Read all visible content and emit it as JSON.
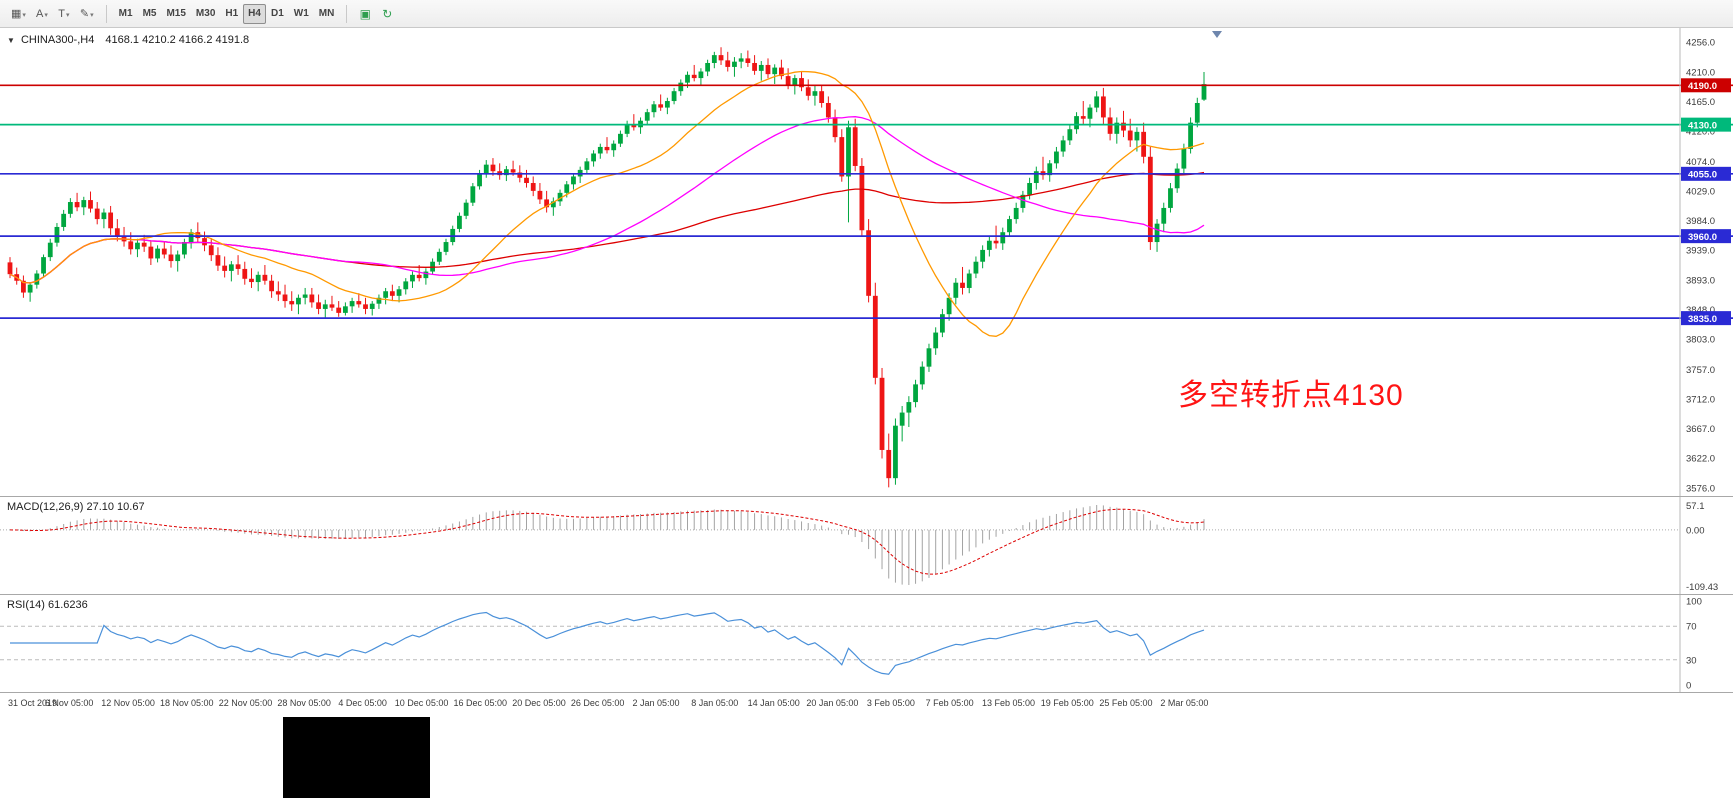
{
  "colors": {
    "up": "#00a63f",
    "down": "#ee1515",
    "ma_fast": "#ff9900",
    "ma_mid": "#ff00ff",
    "ma_slow": "#dd0000",
    "macd_hist": "#a3a3a3",
    "macd_signal": "#dd0000",
    "rsi_line": "#4a90d9",
    "annotation": "#ff1414",
    "axis_text": "#3a3a3a"
  },
  "toolbar": {
    "tools": [
      {
        "name": "chart-grid-tool",
        "glyph": "▦"
      },
      {
        "name": "text-tool",
        "glyph": "A"
      },
      {
        "name": "arrow-tool",
        "glyph": "T"
      },
      {
        "name": "draw-tool",
        "glyph": "✎"
      }
    ],
    "timeframes": [
      "M1",
      "M5",
      "M15",
      "M30",
      "H1",
      "H4",
      "D1",
      "W1",
      "MN"
    ],
    "active_timeframe": "H4",
    "right_icons": [
      {
        "name": "tile-windows-icon",
        "glyph": "▣"
      },
      {
        "name": "refresh-icon",
        "glyph": "↻"
      }
    ]
  },
  "main": {
    "symbol_title": "CHINA300-,H4",
    "ohlc_readout": "4168.1 4210.2 4166.2 4191.8",
    "annotation": "多空转折点4130"
  },
  "macd_panel": {
    "label": "MACD(12,26,9) 27.10 10.67",
    "ticks": [
      "57.1",
      "0.00",
      "-109.43"
    ]
  },
  "rsi_panel": {
    "label": "RSI(14) 61.6236",
    "ticks": [
      "100",
      "70",
      "30",
      "0"
    ]
  },
  "chart_data": {
    "type": "candlestick",
    "symbol": "CHINA300",
    "timeframe": "H4",
    "title": "CHINA300-,H4",
    "y_range": [
      3576.0,
      4256.0
    ],
    "y_ticks": [
      4256.0,
      4210.0,
      4165.0,
      4120.0,
      4074.0,
      4029.0,
      3984.0,
      3939.0,
      3893.0,
      3848.0,
      3803.0,
      3757.0,
      3712.0,
      3667.0,
      3622.0,
      3576.0
    ],
    "hlines": [
      {
        "value": 4190.0,
        "label": "4190.0",
        "color": "#cc0000"
      },
      {
        "value": 4130.0,
        "label": "4130.0",
        "color": "#00b97b"
      },
      {
        "value": 4055.0,
        "label": "4055.0",
        "color": "#2a2ad4"
      },
      {
        "value": 3960.0,
        "label": "3960.0",
        "color": "#2a2ad4"
      },
      {
        "value": 3835.0,
        "label": "3835.0",
        "color": "#2a2ad4"
      }
    ],
    "x_labels": [
      "31 Oct 2019",
      "6 Nov 05:00",
      "12 Nov 05:00",
      "18 Nov 05:00",
      "22 Nov 05:00",
      "28 Nov 05:00",
      "4 Dec 05:00",
      "10 Dec 05:00",
      "16 Dec 05:00",
      "20 Dec 05:00",
      "26 Dec 05:00",
      "2 Jan 05:00",
      "8 Jan 05:00",
      "14 Jan 05:00",
      "20 Jan 05:00",
      "3 Feb 05:00",
      "7 Feb 05:00",
      "13 Feb 05:00",
      "19 Feb 05:00",
      "25 Feb 05:00",
      "2 Mar 05:00"
    ],
    "ma_periods": {
      "fast": 20,
      "mid": 50,
      "slow": 100
    },
    "macd": {
      "fast": 12,
      "slow": 26,
      "signal": 9,
      "current_macd": 27.1,
      "current_signal": 10.67,
      "axis_max": 57.1,
      "axis_min": -109.43
    },
    "rsi": {
      "period": 14,
      "current": 61.6236,
      "levels": [
        70,
        30
      ],
      "axis": [
        100,
        0
      ]
    },
    "candles": [
      [
        3920,
        3928,
        3896,
        3902
      ],
      [
        3902,
        3912,
        3886,
        3892
      ],
      [
        3892,
        3900,
        3866,
        3874
      ],
      [
        3874,
        3890,
        3860,
        3886
      ],
      [
        3886,
        3908,
        3880,
        3903
      ],
      [
        3903,
        3932,
        3898,
        3928
      ],
      [
        3928,
        3956,
        3922,
        3950
      ],
      [
        3950,
        3980,
        3944,
        3974
      ],
      [
        3974,
        4000,
        3968,
        3994
      ],
      [
        3994,
        4018,
        3988,
        4012
      ],
      [
        4012,
        4026,
        3998,
        4004
      ],
      [
        4004,
        4020,
        3992,
        4015
      ],
      [
        4015,
        4028,
        3996,
        4002
      ],
      [
        4002,
        4012,
        3978,
        3986
      ],
      [
        3986,
        4002,
        3972,
        3996
      ],
      [
        3996,
        4006,
        3962,
        3972
      ],
      [
        3972,
        3986,
        3952,
        3960
      ],
      [
        3960,
        3974,
        3944,
        3952
      ],
      [
        3952,
        3966,
        3932,
        3940
      ],
      [
        3940,
        3956,
        3928,
        3950
      ],
      [
        3950,
        3962,
        3936,
        3944
      ],
      [
        3944,
        3952,
        3916,
        3926
      ],
      [
        3926,
        3946,
        3920,
        3941
      ],
      [
        3941,
        3951,
        3926,
        3932
      ],
      [
        3932,
        3946,
        3912,
        3922
      ],
      [
        3922,
        3938,
        3906,
        3932
      ],
      [
        3932,
        3956,
        3926,
        3951
      ],
      [
        3951,
        3971,
        3941,
        3966
      ],
      [
        3966,
        3981,
        3951,
        3957
      ],
      [
        3957,
        3967,
        3937,
        3946
      ],
      [
        3946,
        3957,
        3922,
        3931
      ],
      [
        3931,
        3943,
        3907,
        3915
      ],
      [
        3915,
        3929,
        3897,
        3907
      ],
      [
        3907,
        3922,
        3891,
        3917
      ],
      [
        3917,
        3931,
        3901,
        3910
      ],
      [
        3910,
        3921,
        3886,
        3895
      ],
      [
        3895,
        3911,
        3881,
        3890
      ],
      [
        3890,
        3906,
        3876,
        3901
      ],
      [
        3901,
        3916,
        3886,
        3892
      ],
      [
        3892,
        3901,
        3866,
        3876
      ],
      [
        3876,
        3891,
        3861,
        3871
      ],
      [
        3871,
        3886,
        3851,
        3861
      ],
      [
        3861,
        3876,
        3846,
        3856
      ],
      [
        3856,
        3871,
        3841,
        3866
      ],
      [
        3866,
        3881,
        3856,
        3871
      ],
      [
        3871,
        3881,
        3851,
        3859
      ],
      [
        3859,
        3871,
        3841,
        3849
      ],
      [
        3849,
        3863,
        3836,
        3856
      ],
      [
        3856,
        3869,
        3846,
        3851
      ],
      [
        3851,
        3861,
        3837,
        3843
      ],
      [
        3843,
        3859,
        3839,
        3853
      ],
      [
        3853,
        3866,
        3843,
        3861
      ],
      [
        3861,
        3873,
        3851,
        3856
      ],
      [
        3856,
        3866,
        3841,
        3849
      ],
      [
        3849,
        3861,
        3839,
        3857
      ],
      [
        3857,
        3871,
        3849,
        3866
      ],
      [
        3866,
        3881,
        3856,
        3876
      ],
      [
        3876,
        3886,
        3861,
        3869
      ],
      [
        3869,
        3884,
        3859,
        3879
      ],
      [
        3879,
        3896,
        3871,
        3891
      ],
      [
        3891,
        3906,
        3881,
        3901
      ],
      [
        3901,
        3916,
        3891,
        3896
      ],
      [
        3896,
        3911,
        3886,
        3906
      ],
      [
        3906,
        3926,
        3901,
        3921
      ],
      [
        3921,
        3941,
        3916,
        3936
      ],
      [
        3936,
        3956,
        3931,
        3951
      ],
      [
        3951,
        3976,
        3946,
        3971
      ],
      [
        3971,
        3996,
        3966,
        3991
      ],
      [
        3991,
        4016,
        3986,
        4011
      ],
      [
        4011,
        4041,
        4006,
        4036
      ],
      [
        4036,
        4061,
        4031,
        4056
      ],
      [
        4056,
        4076,
        4049,
        4069
      ],
      [
        4069,
        4079,
        4052,
        4059
      ],
      [
        4059,
        4071,
        4046,
        4053
      ],
      [
        4053,
        4067,
        4044,
        4062
      ],
      [
        4062,
        4075,
        4052,
        4057
      ],
      [
        4057,
        4068,
        4042,
        4049
      ],
      [
        4049,
        4061,
        4034,
        4041
      ],
      [
        4041,
        4051,
        4021,
        4029
      ],
      [
        4029,
        4041,
        4009,
        4016
      ],
      [
        4016,
        4029,
        3996,
        4004
      ],
      [
        4004,
        4019,
        3991,
        4013
      ],
      [
        4013,
        4031,
        4006,
        4026
      ],
      [
        4026,
        4044,
        4019,
        4039
      ],
      [
        4039,
        4056,
        4031,
        4051
      ],
      [
        4051,
        4066,
        4041,
        4061
      ],
      [
        4061,
        4079,
        4054,
        4074
      ],
      [
        4074,
        4091,
        4066,
        4086
      ],
      [
        4086,
        4101,
        4078,
        4096
      ],
      [
        4096,
        4111,
        4086,
        4091
      ],
      [
        4091,
        4106,
        4081,
        4101
      ],
      [
        4101,
        4121,
        4096,
        4116
      ],
      [
        4116,
        4136,
        4111,
        4131
      ],
      [
        4131,
        4146,
        4121,
        4126
      ],
      [
        4126,
        4141,
        4116,
        4136
      ],
      [
        4136,
        4154,
        4129,
        4149
      ],
      [
        4149,
        4166,
        4141,
        4161
      ],
      [
        4161,
        4176,
        4151,
        4156
      ],
      [
        4156,
        4171,
        4146,
        4166
      ],
      [
        4166,
        4186,
        4161,
        4181
      ],
      [
        4181,
        4199,
        4174,
        4194
      ],
      [
        4194,
        4211,
        4186,
        4206
      ],
      [
        4206,
        4221,
        4196,
        4201
      ],
      [
        4201,
        4216,
        4191,
        4211
      ],
      [
        4211,
        4229,
        4204,
        4224
      ],
      [
        4224,
        4241,
        4216,
        4236
      ],
      [
        4236,
        4248,
        4221,
        4228
      ],
      [
        4228,
        4241,
        4211,
        4218
      ],
      [
        4218,
        4233,
        4203,
        4226
      ],
      [
        4226,
        4239,
        4216,
        4231
      ],
      [
        4231,
        4243,
        4218,
        4224
      ],
      [
        4224,
        4236,
        4206,
        4212
      ],
      [
        4212,
        4227,
        4197,
        4221
      ],
      [
        4221,
        4231,
        4201,
        4207
      ],
      [
        4207,
        4222,
        4192,
        4217
      ],
      [
        4217,
        4229,
        4199,
        4204
      ],
      [
        4204,
        4216,
        4184,
        4191
      ],
      [
        4191,
        4206,
        4176,
        4201
      ],
      [
        4201,
        4211,
        4181,
        4187
      ],
      [
        4187,
        4199,
        4167,
        4174
      ],
      [
        4174,
        4189,
        4159,
        4181
      ],
      [
        4181,
        4191,
        4156,
        4163
      ],
      [
        4163,
        4173,
        4133,
        4141
      ],
      [
        4141,
        4153,
        4103,
        4111
      ],
      [
        4111,
        4123,
        4043,
        4051
      ],
      [
        4051,
        4136,
        3981,
        4126
      ],
      [
        4126,
        4139,
        4059,
        4067
      ],
      [
        4067,
        4079,
        3959,
        3969
      ],
      [
        3969,
        3986,
        3859,
        3869
      ],
      [
        3869,
        3889,
        3734,
        3744
      ],
      [
        3744,
        3759,
        3621,
        3634
      ],
      [
        3634,
        3659,
        3577,
        3591
      ],
      [
        3591,
        3682,
        3581,
        3671
      ],
      [
        3671,
        3701,
        3647,
        3691
      ],
      [
        3691,
        3716,
        3669,
        3707
      ],
      [
        3707,
        3741,
        3699,
        3734
      ],
      [
        3734,
        3769,
        3726,
        3761
      ],
      [
        3761,
        3796,
        3753,
        3789
      ],
      [
        3789,
        3821,
        3779,
        3813
      ],
      [
        3813,
        3849,
        3806,
        3841
      ],
      [
        3841,
        3873,
        3831,
        3866
      ],
      [
        3866,
        3896,
        3856,
        3889
      ],
      [
        3889,
        3913,
        3871,
        3881
      ],
      [
        3881,
        3909,
        3873,
        3903
      ],
      [
        3903,
        3929,
        3896,
        3921
      ],
      [
        3921,
        3946,
        3911,
        3939
      ],
      [
        3939,
        3961,
        3929,
        3953
      ],
      [
        3953,
        3976,
        3941,
        3949
      ],
      [
        3949,
        3973,
        3939,
        3966
      ],
      [
        3966,
        3991,
        3959,
        3986
      ],
      [
        3986,
        4011,
        3979,
        4003
      ],
      [
        4003,
        4029,
        3996,
        4023
      ],
      [
        4023,
        4049,
        4016,
        4041
      ],
      [
        4041,
        4066,
        4031,
        4059
      ],
      [
        4059,
        4081,
        4046,
        4053
      ],
      [
        4053,
        4076,
        4043,
        4071
      ],
      [
        4071,
        4096,
        4063,
        4089
      ],
      [
        4089,
        4113,
        4081,
        4106
      ],
      [
        4106,
        4131,
        4099,
        4123
      ],
      [
        4123,
        4149,
        4116,
        4143
      ],
      [
        4143,
        4166,
        4131,
        4139
      ],
      [
        4139,
        4161,
        4126,
        4156
      ],
      [
        4156,
        4181,
        4149,
        4173
      ],
      [
        4173,
        4186,
        4131,
        4141
      ],
      [
        4141,
        4156,
        4106,
        4116
      ],
      [
        4116,
        4141,
        4101,
        4133
      ],
      [
        4133,
        4151,
        4111,
        4121
      ],
      [
        4121,
        4139,
        4096,
        4106
      ],
      [
        4106,
        4126,
        4089,
        4119
      ],
      [
        4119,
        4133,
        4071,
        4081
      ],
      [
        4081,
        4096,
        3939,
        3951
      ],
      [
        3951,
        3986,
        3936,
        3979
      ],
      [
        3979,
        4011,
        3966,
        4003
      ],
      [
        4003,
        4041,
        3996,
        4033
      ],
      [
        4033,
        4071,
        4026,
        4063
      ],
      [
        4063,
        4101,
        4056,
        4093
      ],
      [
        4093,
        4141,
        4086,
        4133
      ],
      [
        4133,
        4171,
        4126,
        4163
      ],
      [
        4168.1,
        4210.2,
        4166.2,
        4191.8
      ]
    ]
  }
}
